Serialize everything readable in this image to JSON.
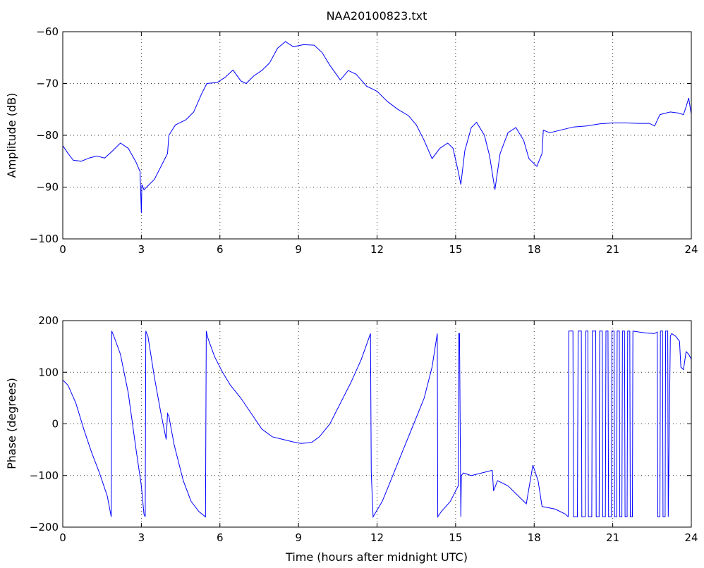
{
  "chart_data": [
    {
      "type": "line",
      "title": "NAA20100823.txt",
      "xlabel": "",
      "ylabel": "Amplitude (dB)",
      "xlim": [
        0,
        24
      ],
      "ylim": [
        -100,
        -60
      ],
      "xticks": [
        0,
        3,
        6,
        9,
        12,
        15,
        18,
        21,
        24
      ],
      "yticks": [
        -100,
        -90,
        -80,
        -70,
        -60
      ],
      "grid": true,
      "color": "#0000ff",
      "series": [
        {
          "x": [
            0,
            0.2,
            0.4,
            0.7,
            1.0,
            1.3,
            1.6,
            1.9,
            2.2,
            2.5,
            2.8,
            2.95,
            3.0,
            3.02,
            3.1,
            3.5,
            3.9,
            4.0,
            4.05,
            4.3,
            4.7,
            5.0,
            5.3,
            5.5,
            5.9,
            6.2,
            6.5,
            6.8,
            7.0,
            7.3,
            7.6,
            7.9,
            8.2,
            8.5,
            8.8,
            9.2,
            9.6,
            9.9,
            10.2,
            10.6,
            10.9,
            11.2,
            11.6,
            12.0,
            12.4,
            12.8,
            13.2,
            13.5,
            13.8,
            14.1,
            14.4,
            14.7,
            14.9,
            15.1,
            15.2,
            15.35,
            15.6,
            15.8,
            16.1,
            16.3,
            16.5,
            16.7,
            17.0,
            17.3,
            17.6,
            17.8,
            18.1,
            18.3,
            18.35,
            18.6,
            19.0,
            19.5,
            20.0,
            20.5,
            21.0,
            21.5,
            22.0,
            22.4,
            22.6,
            22.8,
            23.2,
            23.5,
            23.7,
            23.8,
            23.9,
            24.0
          ],
          "y": [
            -82,
            -83.5,
            -84.8,
            -85,
            -84.4,
            -84,
            -84.4,
            -83,
            -81.5,
            -82.5,
            -85.2,
            -87,
            -95,
            -89.5,
            -90.5,
            -88.5,
            -84.5,
            -83.5,
            -80,
            -78,
            -77,
            -75.5,
            -72,
            -70,
            -69.8,
            -68.8,
            -67.4,
            -69.5,
            -70,
            -68.5,
            -67.5,
            -66,
            -63.2,
            -61.9,
            -62.9,
            -62.5,
            -62.6,
            -64,
            -66.5,
            -69.3,
            -67.5,
            -68.2,
            -70.5,
            -71.5,
            -73.5,
            -75,
            -76.2,
            -78,
            -81,
            -84.5,
            -82.5,
            -81.5,
            -82.5,
            -87,
            -89.5,
            -83,
            -78.5,
            -77.5,
            -80,
            -84,
            -90.5,
            -83.5,
            -79.5,
            -78.5,
            -81,
            -84.5,
            -86,
            -83.5,
            -79,
            -79.5,
            -79,
            -78.4,
            -78.2,
            -77.8,
            -77.6,
            -77.6,
            -77.7,
            -77.7,
            -78.2,
            -76,
            -75.5,
            -75.7,
            -76,
            -74.5,
            -72.8,
            -76
          ]
        }
      ]
    },
    {
      "type": "line",
      "title": "",
      "xlabel": "Time (hours after midnight UTC)",
      "ylabel": "Phase (degrees)",
      "xlim": [
        0,
        24
      ],
      "ylim": [
        -200,
        200
      ],
      "xticks": [
        0,
        3,
        6,
        9,
        12,
        15,
        18,
        21,
        24
      ],
      "yticks": [
        -200,
        -100,
        0,
        100,
        200
      ],
      "grid": true,
      "color": "#0000ff",
      "series": [
        {
          "x": [
            0,
            0.2,
            0.5,
            0.8,
            1.1,
            1.4,
            1.7,
            1.85,
            1.87,
            1.95,
            2.2,
            2.5,
            2.8,
            3.0,
            3.1,
            3.15,
            3.17,
            3.25,
            3.5,
            3.75,
            3.95,
            4.0,
            4.05,
            4.25,
            4.6,
            4.9,
            5.2,
            5.45,
            5.48,
            5.55,
            5.8,
            6.1,
            6.4,
            6.8,
            7.2,
            7.6,
            8.0,
            8.4,
            8.8,
            9.1,
            9.5,
            9.8,
            10.2,
            10.6,
            11.0,
            11.4,
            11.75,
            11.78,
            11.85,
            12.2,
            12.6,
            13.0,
            13.4,
            13.8,
            14.1,
            14.3,
            14.32,
            14.45,
            14.8,
            15.0,
            15.1,
            15.12,
            15.15,
            15.2,
            15.22,
            15.3,
            15.6,
            16.0,
            16.4,
            16.45,
            16.6,
            17.0,
            17.4,
            17.7,
            17.95,
            18.15,
            18.3,
            18.8,
            19.2,
            19.3
          ],
          "y": [
            85,
            75,
            40,
            -10,
            -55,
            -95,
            -140,
            -180,
            180,
            170,
            135,
            60,
            -50,
            -120,
            -175,
            -180,
            180,
            170,
            90,
            20,
            -30,
            20,
            15,
            -40,
            -110,
            -150,
            -170,
            -180,
            180,
            165,
            130,
            100,
            75,
            50,
            20,
            -10,
            -25,
            -30,
            -35,
            -38,
            -36,
            -25,
            0,
            40,
            80,
            125,
            175,
            -95,
            -180,
            -150,
            -100,
            -50,
            0,
            50,
            110,
            175,
            -180,
            -170,
            -150,
            -130,
            -120,
            175,
            175,
            -180,
            -100,
            -95,
            -100,
            -95,
            -90,
            -130,
            -110,
            -120,
            -140,
            -155,
            -80,
            -110,
            -160,
            -165,
            -175,
            -180
          ]
        },
        {
          "x": [
            19.3,
            19.32,
            19.48,
            19.5,
            19.65,
            19.68,
            19.8,
            19.82,
            19.95,
            19.97,
            20.05,
            20.07,
            20.2,
            20.22,
            20.35,
            20.37,
            20.48,
            20.5,
            20.6,
            20.62,
            20.72,
            20.74,
            20.82,
            20.84,
            20.95,
            20.97,
            21.05,
            21.07,
            21.15,
            21.17,
            21.25,
            21.27,
            21.35,
            21.37,
            21.45,
            21.47,
            21.55,
            21.57,
            21.65,
            21.67,
            21.75,
            21.77
          ],
          "y": [
            -180,
            180,
            180,
            -180,
            -180,
            180,
            180,
            -180,
            -180,
            180,
            180,
            -180,
            -180,
            180,
            180,
            -180,
            -180,
            180,
            180,
            -180,
            -180,
            180,
            180,
            -180,
            -180,
            180,
            180,
            -180,
            -180,
            180,
            180,
            -180,
            -180,
            180,
            180,
            -180,
            -180,
            180,
            180,
            -180,
            -180,
            180
          ]
        },
        {
          "x": [
            21.77,
            22.0,
            22.3,
            22.6,
            22.7,
            22.72,
            22.8,
            22.82,
            22.9,
            22.92,
            23.0,
            23.02,
            23.1,
            23.12,
            23.2,
            23.25,
            23.4,
            23.55,
            23.6,
            23.7,
            23.8,
            23.9,
            24.0
          ],
          "y": [
            180,
            178,
            176,
            175,
            178,
            -180,
            -180,
            180,
            180,
            -180,
            -180,
            180,
            180,
            -180,
            170,
            175,
            170,
            160,
            110,
            105,
            140,
            135,
            125
          ]
        }
      ]
    }
  ]
}
